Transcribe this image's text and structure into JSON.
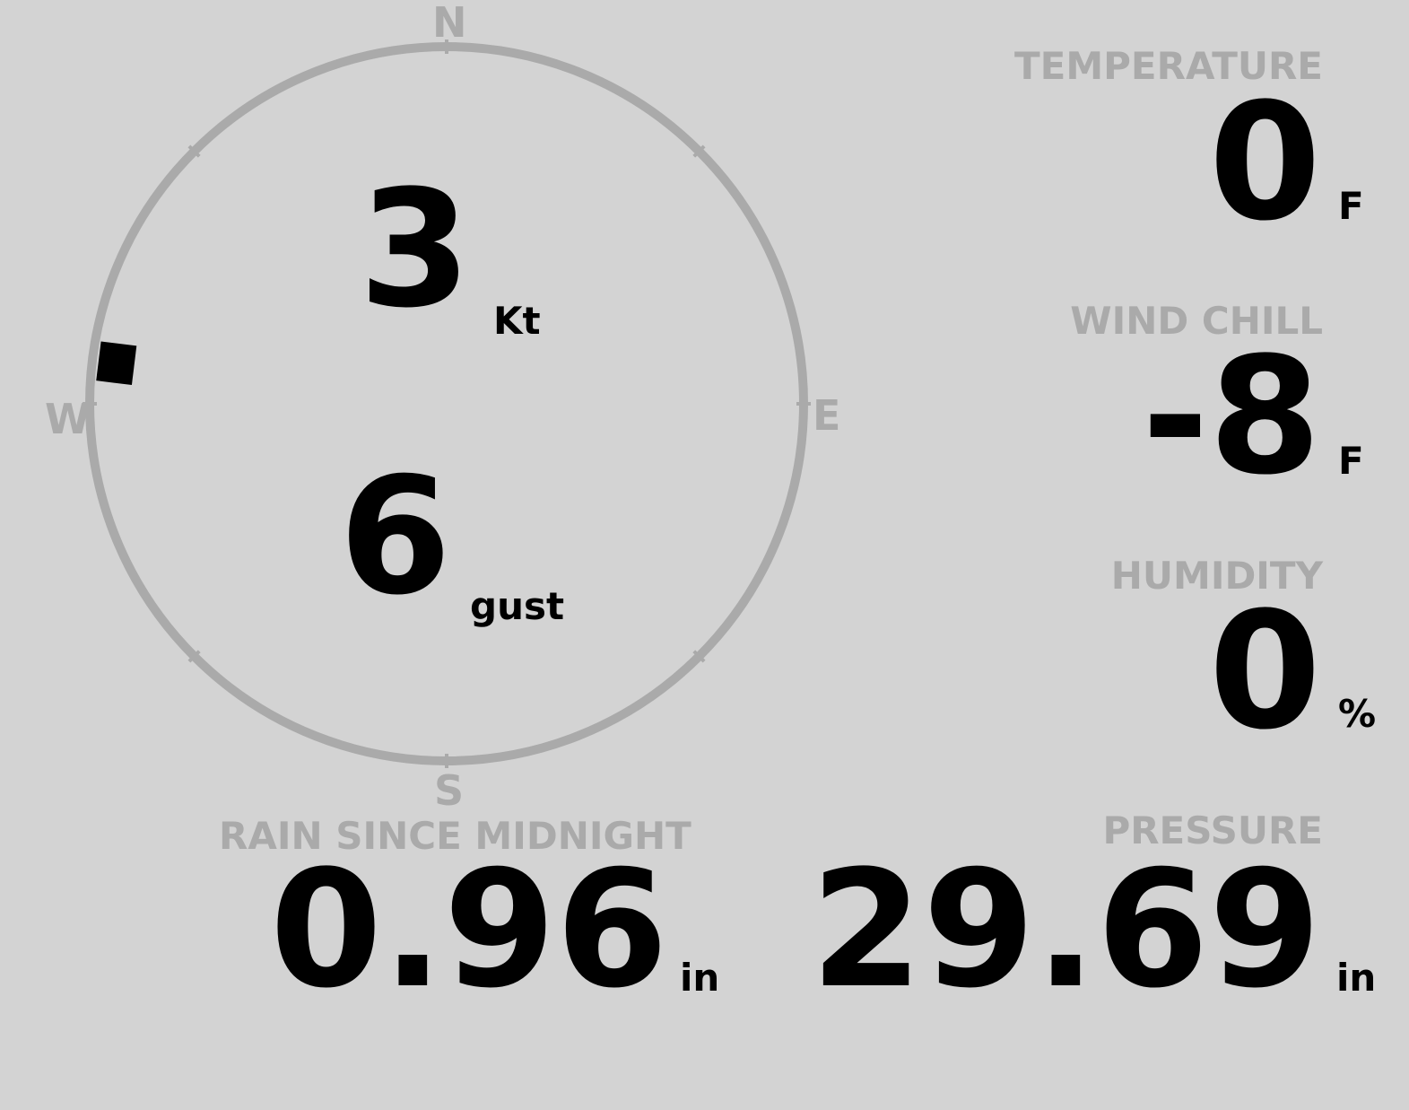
{
  "colors": {
    "background": "#d3d3d3",
    "label": "#aaaaaa",
    "value": "#000000"
  },
  "compass": {
    "north": "N",
    "south": "S",
    "east": "E",
    "west": "W",
    "wind_direction_deg": 277
  },
  "wind": {
    "speed": "3",
    "speed_unit": "Kt",
    "gust": "6",
    "gust_unit": "gust"
  },
  "temperature": {
    "label": "TEMPERATURE",
    "value": "0",
    "unit": "F"
  },
  "wind_chill": {
    "label": "WIND CHILL",
    "value": "-8",
    "unit": "F"
  },
  "humidity": {
    "label": "HUMIDITY",
    "value": "0",
    "unit": "%"
  },
  "rain": {
    "label": "RAIN SINCE MIDNIGHT",
    "value": "0.96",
    "unit": "in"
  },
  "pressure": {
    "label": "PRESSURE",
    "value": "29.69",
    "unit": "in"
  }
}
